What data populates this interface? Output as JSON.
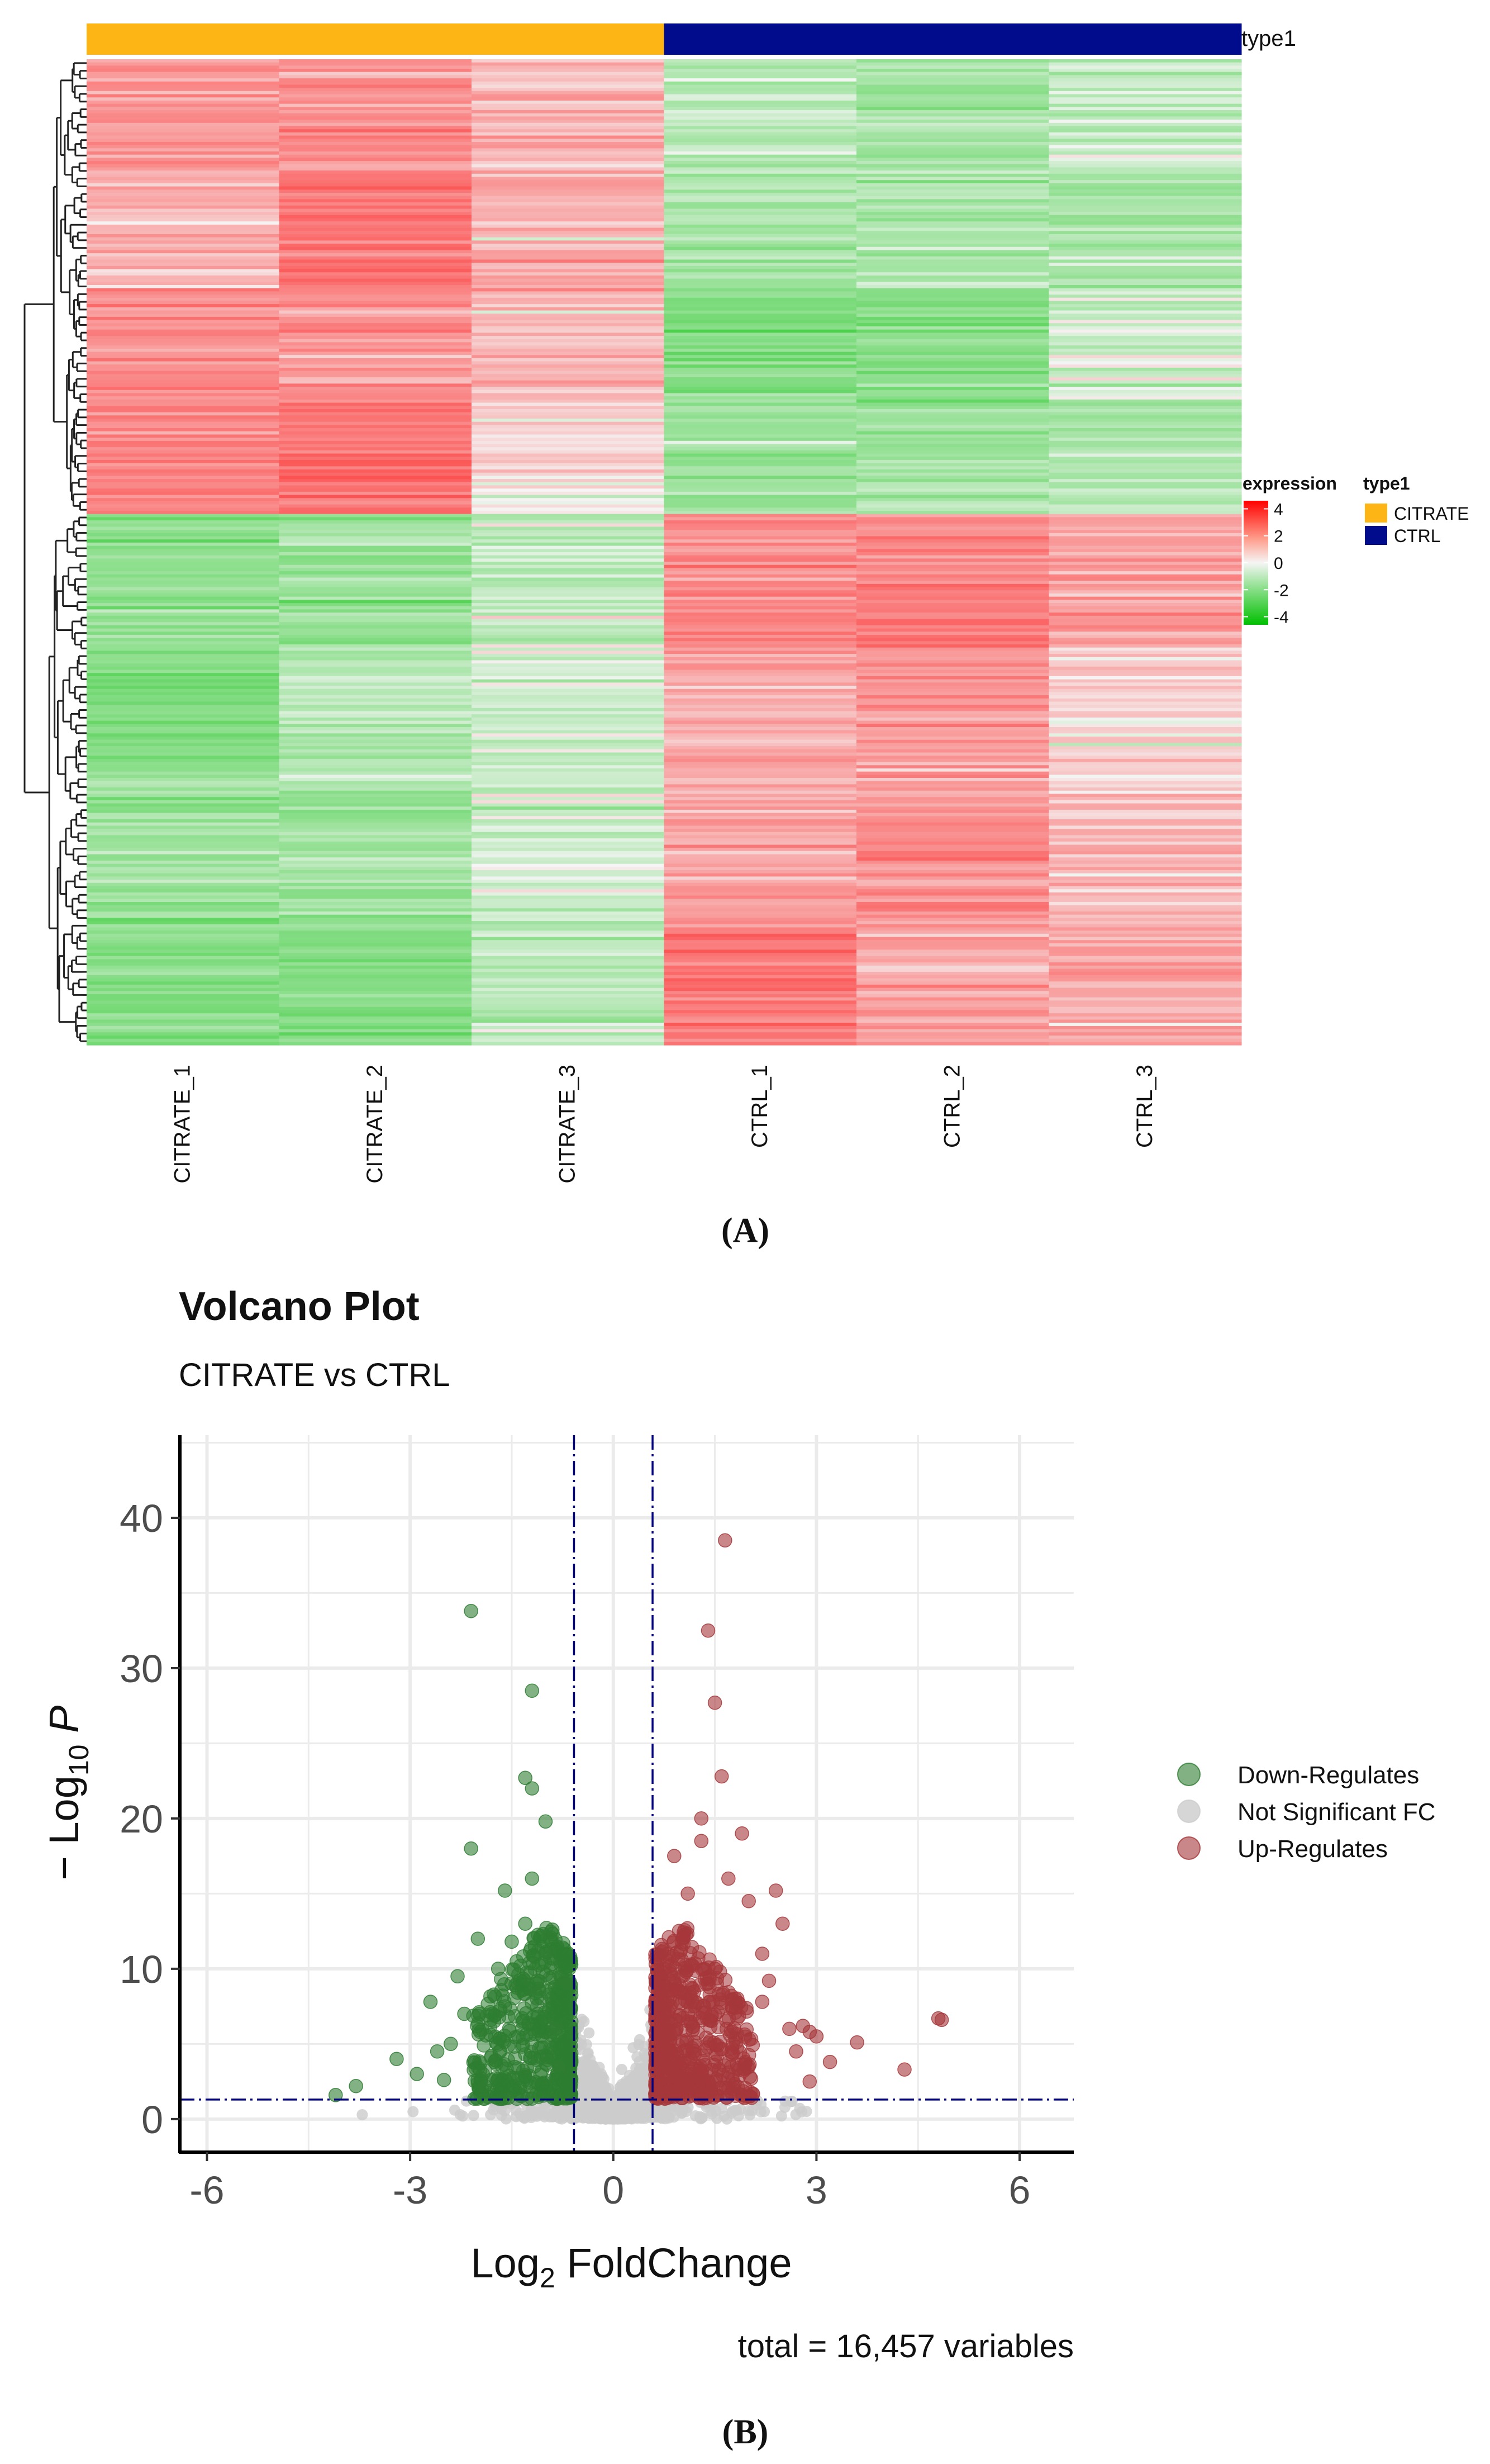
{
  "heatmap": {
    "columns": [
      "CITRATE_1",
      "CITRATE_2",
      "CITRATE_3",
      "CTRL_1",
      "CTRL_2",
      "CTRL_3"
    ],
    "groups": [
      "CITRATE",
      "CITRATE",
      "CITRATE",
      "CTRL",
      "CTRL",
      "CTRL"
    ],
    "annotation_title": "type1",
    "annotation_legend": {
      "title": "type1",
      "items": [
        {
          "label": "CITRATE",
          "color": "#FDB515"
        },
        {
          "label": "CTRL",
          "color": "#000C8B"
        }
      ]
    },
    "color_legend": {
      "title": "expression",
      "ticks": [
        "4",
        "2",
        "0",
        "-2",
        "-4"
      ],
      "tick_values": [
        4,
        2,
        0,
        -2,
        -4
      ],
      "range": [
        -4.6,
        4.6
      ],
      "colors": {
        "high": "#FF0000",
        "mid": "#F5F5F5",
        "low": "#00C000"
      }
    },
    "blocks": [
      {
        "fraction": 0.46,
        "values": [
          1.0,
          1.4,
          0.6,
          -1.1,
          -1.1,
          -0.7
        ]
      },
      {
        "fraction": 0.54,
        "values": [
          -1.0,
          -1.1,
          -0.6,
          1.2,
          1.2,
          0.7
        ]
      }
    ],
    "panel_label": "(A)"
  },
  "volcano": {
    "title": "Volcano Plot",
    "subtitle": "CITRATE vs CTRL",
    "x_label_base": "Log",
    "x_label_sub": "2",
    "x_label_rest": " FoldChange",
    "y_label_prefix": "− Log",
    "y_label_sub": "10",
    "y_label_rest": " P",
    "caption": "total = 16,457 variables",
    "panel_label": "(B)",
    "legend": [
      {
        "label": "Down-Regulates",
        "color": "#2E7D32"
      },
      {
        "label": "Not Significant FC",
        "color": "#CCCCCC"
      },
      {
        "label": "Up-Regulates",
        "color": "#A5373A"
      }
    ]
  },
  "chart_data": [
    {
      "type": "heatmap",
      "title": "",
      "x_categories": [
        "CITRATE_1",
        "CITRATE_2",
        "CITRATE_3",
        "CTRL_1",
        "CTRL_2",
        "CTRL_3"
      ],
      "annotation": {
        "type1": [
          "CITRATE",
          "CITRATE",
          "CITRATE",
          "CTRL",
          "CTRL",
          "CTRL"
        ]
      },
      "color_scale": {
        "min": -4,
        "max": 4,
        "low": "#00C000",
        "mid": "#F5F5F5",
        "high": "#FF0000"
      },
      "row_clusters": [
        {
          "share": 0.46,
          "mean_z": [
            1.0,
            1.4,
            0.6,
            -1.1,
            -1.1,
            -0.7
          ],
          "direction": "up in CITRATE"
        },
        {
          "share": 0.54,
          "mean_z": [
            -1.0,
            -1.1,
            -0.6,
            1.2,
            1.2,
            0.7
          ],
          "direction": "up in CTRL"
        }
      ],
      "legend": "right"
    },
    {
      "type": "scatter",
      "title": "Volcano Plot",
      "subtitle": "CITRATE vs CTRL",
      "xlabel": "Log2 FoldChange",
      "ylabel": "-Log10 P",
      "xlim": [
        -6.4,
        6.8
      ],
      "ylim": [
        -2.2,
        45.5
      ],
      "x_ticks": [
        -6,
        -3,
        0,
        3,
        6
      ],
      "y_ticks": [
        0,
        10,
        20,
        30,
        40
      ],
      "thresholds": {
        "log2fc": [
          -0.58,
          0.58
        ],
        "neg_log10_p": 1.3
      },
      "total_variables": 16457,
      "series": [
        {
          "name": "Down-Regulates",
          "points": [
            [
              -2.1,
              33.8
            ],
            [
              -1.2,
              28.5
            ],
            [
              -1.3,
              22.7
            ],
            [
              -1.2,
              22.0
            ],
            [
              -2.1,
              18.0
            ],
            [
              -1.0,
              19.8
            ],
            [
              -1.6,
              15.2
            ],
            [
              -2.0,
              12.0
            ],
            [
              -1.5,
              11.8
            ],
            [
              -1.7,
              10.0
            ],
            [
              -2.3,
              9.5
            ],
            [
              -2.2,
              7.0
            ],
            [
              -2.7,
              7.8
            ],
            [
              -2.4,
              5.0
            ],
            [
              -3.2,
              4.0
            ],
            [
              -3.8,
              2.2
            ],
            [
              -4.1,
              1.6
            ],
            [
              -2.9,
              3.0
            ],
            [
              -2.5,
              2.6
            ],
            [
              -1.9,
              2.2
            ],
            [
              -1.4,
              5.5
            ],
            [
              -1.1,
              8.5
            ],
            [
              -0.9,
              12.6
            ],
            [
              -0.85,
              6.0
            ],
            [
              -0.8,
              3.5
            ],
            [
              -1.0,
              11.0
            ],
            [
              -1.3,
              13.0
            ],
            [
              -1.6,
              7.5
            ],
            [
              -1.8,
              4.2
            ],
            [
              -2.6,
              4.5
            ],
            [
              -1.2,
              16.0
            ],
            [
              -0.7,
              9.0
            ]
          ],
          "density": {
            "x": [
              -2.0,
              -0.62
            ],
            "y": [
              1.3,
              13.0
            ],
            "count": 520
          }
        },
        {
          "name": "Up-Regulates",
          "points": [
            [
              1.65,
              38.5
            ],
            [
              1.4,
              32.5
            ],
            [
              1.5,
              27.7
            ],
            [
              1.6,
              22.8
            ],
            [
              1.3,
              20.0
            ],
            [
              1.9,
              19.0
            ],
            [
              1.3,
              18.5
            ],
            [
              0.9,
              17.5
            ],
            [
              1.7,
              16.0
            ],
            [
              2.4,
              15.2
            ],
            [
              2.5,
              13.0
            ],
            [
              2.0,
              14.5
            ],
            [
              2.2,
              11.0
            ],
            [
              1.1,
              15.0
            ],
            [
              4.8,
              6.7
            ],
            [
              4.85,
              6.6
            ],
            [
              3.6,
              5.1
            ],
            [
              4.3,
              3.3
            ],
            [
              2.9,
              5.8
            ],
            [
              3.0,
              5.5
            ],
            [
              2.7,
              4.5
            ],
            [
              2.6,
              6.0
            ],
            [
              2.3,
              9.2
            ],
            [
              3.2,
              3.8
            ],
            [
              2.9,
              2.5
            ],
            [
              2.0,
              3.5
            ],
            [
              1.8,
              8.0
            ],
            [
              1.5,
              10.0
            ],
            [
              2.8,
              6.2
            ],
            [
              2.2,
              7.8
            ]
          ],
          "density": {
            "x": [
              0.62,
              2.1
            ],
            "y": [
              1.3,
              14.0
            ],
            "count": 560
          }
        },
        {
          "name": "Not Significant FC",
          "density": {
            "x": [
              -1.5,
              1.5
            ],
            "y": [
              0.0,
              9.0
            ],
            "count": 1300
          }
        }
      ],
      "legend": "right"
    }
  ]
}
